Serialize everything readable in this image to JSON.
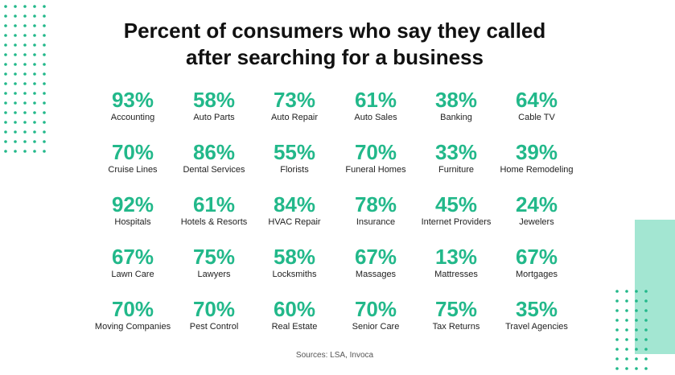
{
  "header": {
    "title_lines": [
      "Percent of consumers who say they called",
      "after searching for a business"
    ]
  },
  "grid": {
    "items": [
      {
        "value": "93%",
        "label": "Accounting"
      },
      {
        "value": "58%",
        "label": "Auto Parts"
      },
      {
        "value": "73%",
        "label": "Auto Repair"
      },
      {
        "value": "61%",
        "label": "Auto Sales"
      },
      {
        "value": "38%",
        "label": "Banking"
      },
      {
        "value": "64%",
        "label": "Cable TV"
      },
      {
        "value": "70%",
        "label": "Cruise Lines"
      },
      {
        "value": "86%",
        "label": "Dental Services"
      },
      {
        "value": "55%",
        "label": "Florists"
      },
      {
        "value": "70%",
        "label": "Funeral Homes"
      },
      {
        "value": "33%",
        "label": "Furniture"
      },
      {
        "value": "39%",
        "label": "Home Remodeling"
      },
      {
        "value": "92%",
        "label": "Hospitals"
      },
      {
        "value": "61%",
        "label": "Hotels & Resorts"
      },
      {
        "value": "84%",
        "label": "HVAC Repair"
      },
      {
        "value": "78%",
        "label": "Insurance"
      },
      {
        "value": "45%",
        "label": "Internet Providers"
      },
      {
        "value": "24%",
        "label": "Jewelers"
      },
      {
        "value": "67%",
        "label": "Lawn Care"
      },
      {
        "value": "75%",
        "label": "Lawyers"
      },
      {
        "value": "58%",
        "label": "Locksmiths"
      },
      {
        "value": "67%",
        "label": "Massages"
      },
      {
        "value": "13%",
        "label": "Mattresses"
      },
      {
        "value": "67%",
        "label": "Mortgages"
      },
      {
        "value": "70%",
        "label": "Moving Companies"
      },
      {
        "value": "70%",
        "label": "Pest Control"
      },
      {
        "value": "60%",
        "label": "Real Estate"
      },
      {
        "value": "70%",
        "label": "Senior Care"
      },
      {
        "value": "75%",
        "label": "Tax Returns"
      },
      {
        "value": "35%",
        "label": "Travel Agencies"
      }
    ]
  },
  "footer": {
    "source": "Sources: LSA, Invoca"
  }
}
